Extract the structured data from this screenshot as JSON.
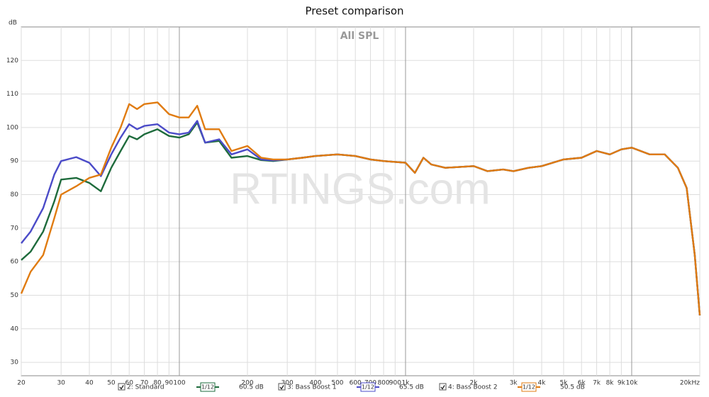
{
  "chart_data": {
    "type": "line",
    "title": "Preset comparison",
    "subtitle": "All SPL",
    "watermark": "RTINGS.com",
    "y_label": "dB",
    "x": [
      20,
      22,
      25,
      28,
      30,
      35,
      40,
      45,
      50,
      55,
      60,
      65,
      70,
      80,
      90,
      100,
      110,
      120,
      130,
      150,
      170,
      200,
      230,
      260,
      300,
      350,
      400,
      500,
      600,
      700,
      800,
      1000,
      1100,
      1200,
      1300,
      1500,
      2000,
      2300,
      2700,
      3000,
      3500,
      4000,
      5000,
      6000,
      7000,
      8000,
      9000,
      10000,
      12000,
      14000,
      16000,
      17500,
      19000,
      20000
    ],
    "series": [
      {
        "name": "2: Standard",
        "color": "#1e6b3c",
        "smoothing": "1/12",
        "offset": "60.5 dB",
        "values": [
          60.5,
          63,
          69,
          78,
          84.5,
          85,
          83.5,
          81,
          88,
          93,
          97.5,
          96.5,
          98,
          99.5,
          97.5,
          97,
          98,
          101.5,
          95.5,
          96,
          91,
          91.5,
          90.3,
          90,
          90.5,
          91,
          91.5,
          92,
          91.5,
          90.5,
          90,
          89.5,
          86.5,
          91,
          89,
          88,
          88.5,
          87,
          87.5,
          87,
          88,
          88.5,
          90.5,
          91,
          93,
          92,
          93.5,
          94,
          92,
          92,
          88,
          82,
          62,
          44
        ]
      },
      {
        "name": "3: Bass Boost 1",
        "color": "#4b4bc8",
        "smoothing": "1/12",
        "offset": "65.5 dB",
        "values": [
          65.5,
          69,
          76,
          86,
          90,
          91.2,
          89.5,
          85.5,
          92,
          97,
          101,
          99.5,
          100.5,
          101,
          98.5,
          98,
          98.5,
          102,
          95.5,
          96.5,
          92,
          93.5,
          90.5,
          90.2,
          90.5,
          91,
          91.5,
          92,
          91.5,
          90.5,
          90,
          89.5,
          86.5,
          91,
          89,
          88,
          88.5,
          87,
          87.5,
          87,
          88,
          88.5,
          90.5,
          91,
          93,
          92,
          93.5,
          94,
          92,
          92,
          88,
          82,
          62,
          44
        ]
      },
      {
        "name": "4: Bass Boost 2",
        "color": "#e07b10",
        "smoothing": "1/12",
        "offset": "50.5 dB",
        "values": [
          50.5,
          57,
          62,
          73,
          80,
          82.5,
          85,
          86,
          94,
          100,
          107,
          105.5,
          107,
          107.5,
          104,
          103,
          103,
          106.5,
          99.5,
          99.5,
          93,
          94.5,
          91,
          90.5,
          90.5,
          91,
          91.5,
          92,
          91.5,
          90.5,
          90,
          89.5,
          86.5,
          91,
          89,
          88,
          88.5,
          87,
          87.5,
          87,
          88,
          88.5,
          90.5,
          91,
          93,
          92,
          93.5,
          94,
          92,
          92,
          88,
          82,
          62,
          44
        ]
      }
    ],
    "xlog": true,
    "xlim": [
      20,
      20000
    ],
    "ylim": [
      26,
      130
    ],
    "xticks": [
      20,
      30,
      40,
      50,
      60,
      70,
      80,
      90,
      100,
      200,
      300,
      400,
      500,
      600,
      700,
      800,
      900,
      {
        "value": 1000,
        "label": "1k"
      },
      {
        "value": 2000,
        "label": "2k"
      },
      {
        "value": 3000,
        "label": "3k"
      },
      {
        "value": 4000,
        "label": "4k"
      },
      {
        "value": 5000,
        "label": "5k"
      },
      {
        "value": 6000,
        "label": "6k"
      },
      {
        "value": 7000,
        "label": "7k"
      },
      {
        "value": 8000,
        "label": "8k"
      },
      {
        "value": 9000,
        "label": "9k"
      },
      {
        "value": 10000,
        "label": "10k"
      },
      {
        "value": 20000,
        "label": "20kHz"
      }
    ],
    "yticks": [
      30,
      40,
      50,
      60,
      70,
      80,
      90,
      100,
      110,
      120
    ],
    "grid": true
  }
}
